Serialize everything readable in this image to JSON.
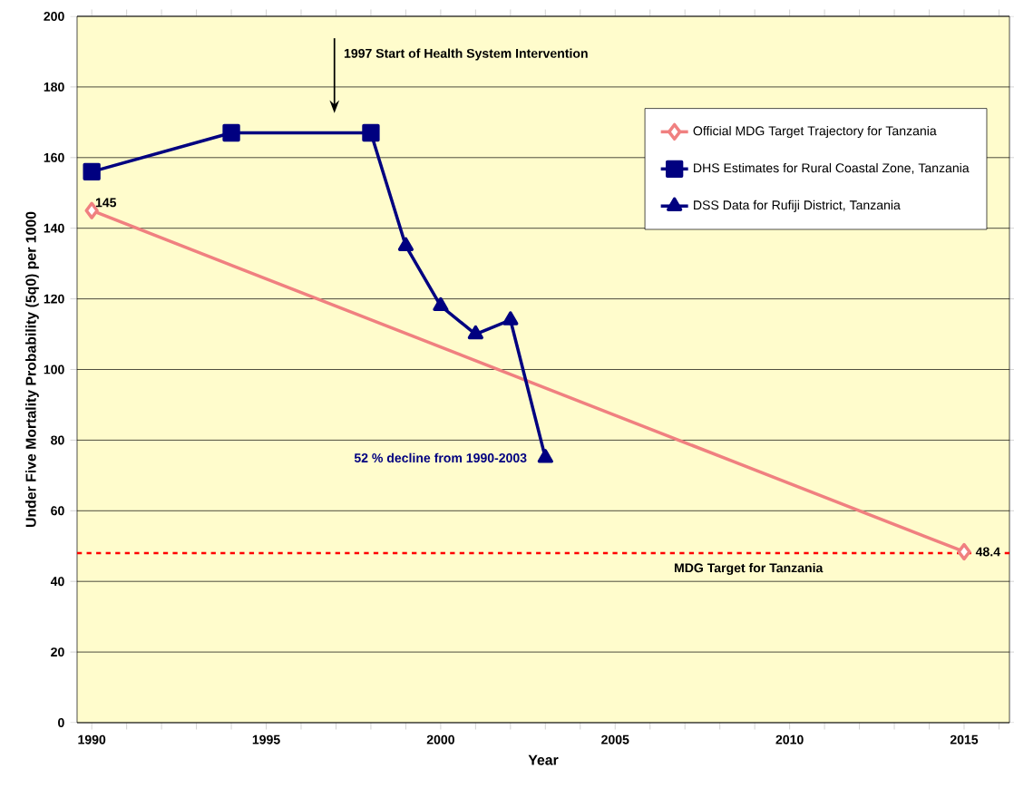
{
  "chart_data": {
    "type": "line",
    "xlabel": "Year",
    "ylabel": "Under Five Mortality Probability (5q0) per 1000",
    "series": [
      {
        "name": "Official MDG Target Trajectory for Tanzania",
        "color": "#f08080",
        "marker": "diamond",
        "x": [
          1990,
          2015
        ],
        "values": [
          145,
          48.4
        ]
      },
      {
        "name": "DHS Estimates for Rural Coastal Zone, Tanzania",
        "color": "#000080",
        "marker": "square",
        "x": [
          1990,
          1994,
          1998
        ],
        "values": [
          156,
          167,
          167
        ]
      },
      {
        "name": "DSS Data for Rufiji District, Tanzania",
        "color": "#000080",
        "marker": "triangle",
        "x": [
          1998,
          1999,
          2000,
          2001,
          2002,
          2003
        ],
        "values": [
          167,
          135,
          118,
          110,
          114,
          75
        ]
      }
    ],
    "xlim": [
      1989.58,
      2016.3
    ],
    "xticks": [
      1990,
      {
        "value": 1991,
        "label": null
      },
      {
        "value": 1992,
        "label": null
      },
      {
        "value": 1993,
        "label": null
      },
      {
        "value": 1994,
        "label": null
      },
      1995,
      {
        "value": 1996,
        "label": null
      },
      {
        "value": 1997,
        "label": null
      },
      {
        "value": 1998,
        "label": null
      },
      {
        "value": 1999,
        "label": null
      },
      2000,
      {
        "value": 2001,
        "label": null
      },
      {
        "value": 2002,
        "label": null
      },
      {
        "value": 2003,
        "label": null
      },
      {
        "value": 2004,
        "label": null
      },
      2005,
      {
        "value": 2006,
        "label": null
      },
      {
        "value": 2007,
        "label": null
      },
      {
        "value": 2008,
        "label": null
      },
      {
        "value": 2009,
        "label": null
      },
      2010,
      {
        "value": 2011,
        "label": null
      },
      {
        "value": 2012,
        "label": null
      },
      {
        "value": 2013,
        "label": null
      },
      {
        "value": 2014,
        "label": null
      },
      2015,
      {
        "value": 2016,
        "label": null
      }
    ],
    "ylim": [
      0,
      200
    ],
    "yticks": [
      0,
      20,
      40,
      60,
      80,
      100,
      120,
      140,
      160,
      180,
      200
    ],
    "grid": "y",
    "legend": "top right",
    "ref_lines": [
      {
        "axis": "y",
        "value": 48,
        "label": "MDG Target for Tanzania",
        "color": "#ff0000",
        "line_style": "dashed"
      }
    ],
    "annotations": [
      {
        "text": "145",
        "x": 1990,
        "y": 145
      },
      {
        "text": "48.4",
        "x": 2015,
        "y": 48.4
      },
      "1997 Start of Health System Intervention",
      {
        "text": "52 % decline from 1990-2003",
        "x": 2003,
        "y": 75
      }
    ]
  }
}
